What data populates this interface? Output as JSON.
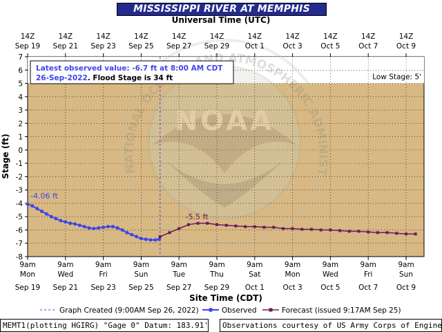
{
  "title": "MISSISSIPPI RIVER AT MEMPHIS",
  "top_axis_label": "Universal Time (UTC)",
  "top_ticks": [
    {
      "l1": "14Z",
      "l2": "Sep 19"
    },
    {
      "l1": "14Z",
      "l2": "Sep 21"
    },
    {
      "l1": "14Z",
      "l2": "Sep 23"
    },
    {
      "l1": "14Z",
      "l2": "Sep 25"
    },
    {
      "l1": "14Z",
      "l2": "Sep 27"
    },
    {
      "l1": "14Z",
      "l2": "Sep 29"
    },
    {
      "l1": "14Z",
      "l2": "Oct 1"
    },
    {
      "l1": "14Z",
      "l2": "Oct 3"
    },
    {
      "l1": "14Z",
      "l2": "Oct 5"
    },
    {
      "l1": "14Z",
      "l2": "Oct 7"
    },
    {
      "l1": "14Z",
      "l2": "Oct 9"
    }
  ],
  "bottom_ticks": [
    {
      "l1": "9am",
      "l2": "Mon",
      "l3": "Sep 19"
    },
    {
      "l1": "9am",
      "l2": "Wed",
      "l3": "Sep 21"
    },
    {
      "l1": "9am",
      "l2": "Fri",
      "l3": "Sep 23"
    },
    {
      "l1": "9am",
      "l2": "Sun",
      "l3": "Sep 25"
    },
    {
      "l1": "9am",
      "l2": "Tue",
      "l3": "Sep 27"
    },
    {
      "l1": "9am",
      "l2": "Thu",
      "l3": "Sep 29"
    },
    {
      "l1": "9am",
      "l2": "Sat",
      "l3": "Oct 1"
    },
    {
      "l1": "9am",
      "l2": "Mon",
      "l3": "Oct 3"
    },
    {
      "l1": "9am",
      "l2": "Wed",
      "l3": "Oct 5"
    },
    {
      "l1": "9am",
      "l2": "Fri",
      "l3": "Oct 7"
    },
    {
      "l1": "9am",
      "l2": "Sun",
      "l3": "Oct 9"
    }
  ],
  "info_box": {
    "line1": "Latest observed value: -6.7 ft at 8:00 AM CDT",
    "line2a": "26-Sep-2022",
    "line2b": ".  Flood Stage is 34 ft"
  },
  "low_stage_label": "Low Stage: 5'",
  "peak_label_observed": "-4.06 ft",
  "peak_label_forecast": "-5.5 ft",
  "legend": {
    "created": "Graph Created (9:00AM Sep 26, 2022)",
    "observed": "Observed",
    "forecast": "Forecast (issued 9:17AM Sep 25)"
  },
  "footer": {
    "left": "MEMT1(plotting HGIRG) \"Gage 0\" Datum: 183.91'",
    "right": "Observations courtesy of US Army Corps of Engineers"
  },
  "watermark": {
    "center_text": "NOAA",
    "ring_text": "NATIONAL OCEANIC AND ATMOSPHERIC ADMINISTRATION · U.S. DEPARTMENT OF COMMERCE"
  },
  "colors": {
    "plot_bg": "#d8b883",
    "lowstage_bg": "#ffffff",
    "observed": "#3f46e8",
    "forecast": "#6a1a5c",
    "title_bg": "#232b8f"
  },
  "chart_data": {
    "type": "line",
    "title": "MISSISSIPPI RIVER AT MEMPHIS",
    "xlabel": "Site Time (CDT)",
    "ylabel": "Stage (ft)",
    "ylim": [
      -8,
      7
    ],
    "yticks": [
      -8,
      -7,
      -6,
      -5,
      -4,
      -3,
      -2,
      -1,
      0,
      1,
      2,
      3,
      4,
      5,
      6,
      7
    ],
    "xlim": [
      "2022-09-19 09:00",
      "2022-10-09 23:00"
    ],
    "low_stage_ft": 5,
    "flood_stage_ft": 34,
    "graph_created": "2022-09-26 09:00",
    "series": [
      {
        "name": "Observed",
        "x": [
          "2022-09-19 09:00",
          "2022-09-19 15:00",
          "2022-09-19 21:00",
          "2022-09-20 03:00",
          "2022-09-20 09:00",
          "2022-09-20 15:00",
          "2022-09-20 21:00",
          "2022-09-21 03:00",
          "2022-09-21 09:00",
          "2022-09-21 15:00",
          "2022-09-21 21:00",
          "2022-09-22 03:00",
          "2022-09-22 09:00",
          "2022-09-22 15:00",
          "2022-09-22 21:00",
          "2022-09-23 03:00",
          "2022-09-23 09:00",
          "2022-09-23 15:00",
          "2022-09-23 21:00",
          "2022-09-24 03:00",
          "2022-09-24 09:00",
          "2022-09-24 15:00",
          "2022-09-24 21:00",
          "2022-09-25 03:00",
          "2022-09-25 09:00",
          "2022-09-25 15:00",
          "2022-09-25 21:00",
          "2022-09-26 03:00",
          "2022-09-26 08:00"
        ],
        "y": [
          -4.06,
          -4.2,
          -4.4,
          -4.6,
          -4.8,
          -5.0,
          -5.15,
          -5.3,
          -5.4,
          -5.5,
          -5.55,
          -5.65,
          -5.75,
          -5.85,
          -5.9,
          -5.85,
          -5.8,
          -5.75,
          -5.75,
          -5.85,
          -6.0,
          -6.2,
          -6.35,
          -6.5,
          -6.65,
          -6.7,
          -6.75,
          -6.75,
          -6.7
        ]
      },
      {
        "name": "Forecast",
        "x": [
          "2022-09-26 09:00",
          "2022-09-26 21:00",
          "2022-09-27 09:00",
          "2022-09-27 21:00",
          "2022-09-28 09:00",
          "2022-09-28 21:00",
          "2022-09-29 09:00",
          "2022-09-29 21:00",
          "2022-09-30 09:00",
          "2022-09-30 21:00",
          "2022-10-01 09:00",
          "2022-10-01 21:00",
          "2022-10-02 09:00",
          "2022-10-02 21:00",
          "2022-10-03 09:00",
          "2022-10-03 21:00",
          "2022-10-04 09:00",
          "2022-10-04 21:00",
          "2022-10-05 09:00",
          "2022-10-05 21:00",
          "2022-10-06 09:00",
          "2022-10-06 21:00",
          "2022-10-07 09:00",
          "2022-10-07 21:00",
          "2022-10-08 09:00",
          "2022-10-08 21:00",
          "2022-10-09 09:00",
          "2022-10-09 21:00"
        ],
        "y": [
          -6.5,
          -6.2,
          -5.9,
          -5.6,
          -5.5,
          -5.5,
          -5.6,
          -5.65,
          -5.7,
          -5.75,
          -5.75,
          -5.8,
          -5.8,
          -5.9,
          -5.9,
          -5.95,
          -5.95,
          -6.0,
          -6.0,
          -6.05,
          -6.1,
          -6.1,
          -6.15,
          -6.2,
          -6.2,
          -6.25,
          -6.3,
          -6.3
        ]
      }
    ]
  }
}
